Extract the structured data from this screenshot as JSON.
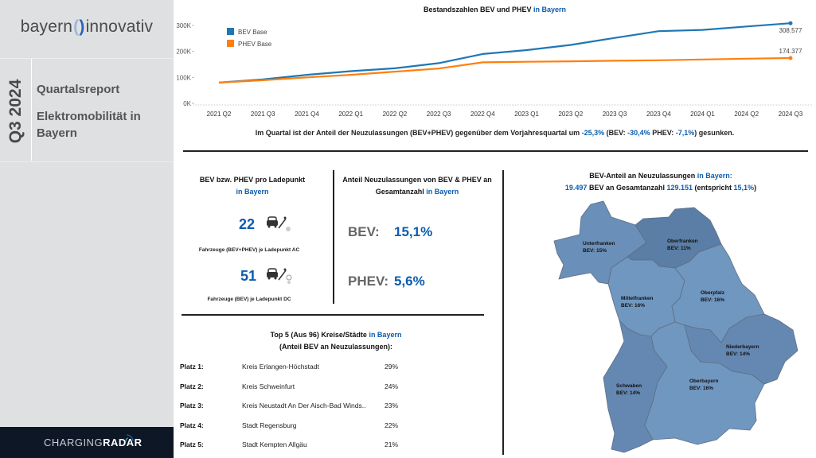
{
  "sidebar": {
    "logo_left": "bayern",
    "logo_right": "innovativ",
    "quarter": "Q3 2024",
    "report_title": "Quartalsreport",
    "report_subtitle": "Elektromobilität in Bayern",
    "footer_brand_light": "CHARGING",
    "footer_brand_bold": "RADAR"
  },
  "chart_data": {
    "type": "line",
    "title_prefix": "Bestandszahlen BEV und PHEV",
    "title_highlight": "in Bayern",
    "x": [
      "2021 Q2",
      "2021 Q3",
      "2021 Q4",
      "2022 Q1",
      "2022 Q2",
      "2022 Q3",
      "2022 Q4",
      "2023 Q1",
      "2023 Q2",
      "2023 Q3",
      "2023 Q4",
      "2024 Q1",
      "2024 Q2",
      "2024 Q3"
    ],
    "yticks": [
      "0K",
      "100K",
      "200K",
      "300K"
    ],
    "ylim": [
      0,
      300000
    ],
    "grid": false,
    "legend_position": "top-left",
    "series": [
      {
        "name": "BEV Base",
        "color": "#1f77b4",
        "values": [
          80000,
          92000,
          110000,
          124000,
          135000,
          155000,
          190000,
          205000,
          225000,
          252000,
          278000,
          283000,
          296000,
          308577
        ],
        "end_label": "308.577"
      },
      {
        "name": "PHEV Base",
        "color": "#ff7f0e",
        "values": [
          80000,
          89000,
          100000,
          110000,
          122000,
          134000,
          158000,
          160000,
          162000,
          164000,
          166000,
          169000,
          172000,
          174377
        ],
        "end_label": "174.377"
      }
    ]
  },
  "trend": {
    "text_a": "Im Quartal ist der Anteil der Neuzulassungen (BEV+PHEV) gegenüber dem Vorjahresquartal um ",
    "total": "-25,3%",
    "text_b": "  (BEV: ",
    "bev": "-30,4%",
    "text_c": " PHEV: ",
    "phev": "-7,1%",
    "text_d": ") gesunken."
  },
  "charging": {
    "title": "BEV bzw. PHEV pro Ladepunkt",
    "title_highlight": "in Bayern",
    "ac_value": "22",
    "ac_label": "Fahrzeuge (BEV+PHEV) je Ladepunkt AC",
    "dc_value": "51",
    "dc_label": "Fahrzeuge (BEV) je Ladepunkt DC",
    "icon": "car-charger-icon"
  },
  "share": {
    "title": "Anteil Neuzulassungen von BEV & PHEV an",
    "title_line2": "Gesamtanzahl",
    "title_highlight": "in Bayern",
    "bev_label": "BEV:",
    "bev_value": "15,1%",
    "phev_label": "PHEV:",
    "phev_value": "5,6%"
  },
  "top5": {
    "title": "Top 5 (Aus 96) Kreise/Städte",
    "title_highlight": "in Bayern",
    "subtitle": "(Anteil BEV an Neuzulassungen):",
    "rows": [
      {
        "place": "Platz 1:",
        "name": "Kreis Erlangen-Höchstadt",
        "value": "29%"
      },
      {
        "place": "Platz 2:",
        "name": "Kreis Schweinfurt",
        "value": "24%"
      },
      {
        "place": "Platz 3:",
        "name": "Kreis Neustadt An Der Aisch-Bad Winds..",
        "value": "23%"
      },
      {
        "place": "Platz 4:",
        "name": "Stadt Regensburg",
        "value": "22%"
      },
      {
        "place": "Platz 5:",
        "name": "Stadt Kempten Allgäu",
        "value": "21%"
      }
    ]
  },
  "map": {
    "title": "BEV-Anteil an Neuzulassungen",
    "title_highlight": "in Bayern:",
    "bev_count": "19.497",
    "mid_text": " BEV an Gesamtanzahl ",
    "total_count": "129.151",
    "tail_text": " (entspricht ",
    "share": "15,1%",
    "close": ")",
    "regions": [
      {
        "name": "Unterfranken",
        "label": "BEV: 15%",
        "share_pct": 15,
        "color": "#6a8fb8"
      },
      {
        "name": "Oberfranken",
        "label": "BEV: 11%",
        "share_pct": 11,
        "color": "#5a7ea6"
      },
      {
        "name": "Mittelfranken",
        "label": "BEV: 16%",
        "share_pct": 16,
        "color": "#7097c0"
      },
      {
        "name": "Oberpfalz",
        "label": "BEV: 16%",
        "share_pct": 16,
        "color": "#7097c0"
      },
      {
        "name": "Niederbayern",
        "label": "BEV: 14%",
        "share_pct": 14,
        "color": "#6588b3"
      },
      {
        "name": "Schwaben",
        "label": "BEV: 14%",
        "share_pct": 14,
        "color": "#6588b3"
      },
      {
        "name": "Oberbayern",
        "label": "BEV: 16%",
        "share_pct": 16,
        "color": "#7097c0"
      }
    ]
  }
}
